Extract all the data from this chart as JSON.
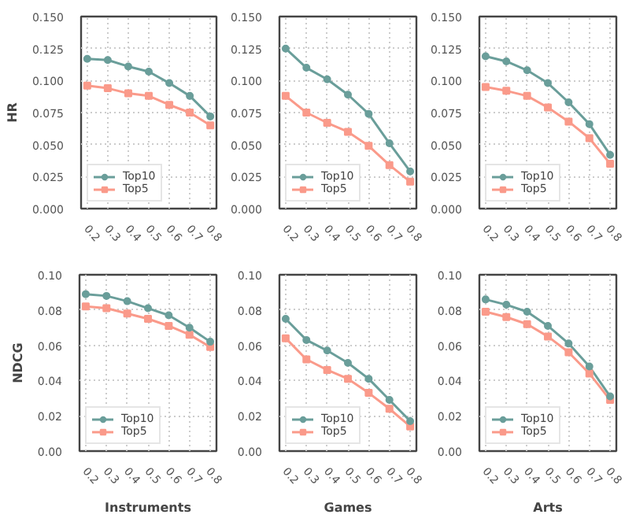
{
  "chart_data": [
    {
      "type": "line",
      "ylabel": "HR",
      "categories": [
        "0.2",
        "0.3",
        "0.4",
        "0.5",
        "0.6",
        "0.7",
        "0.8"
      ],
      "ylim": [
        0,
        0.15
      ],
      "yticks": [
        {
          "value": 0,
          "label": "0.000"
        },
        0.025,
        {
          "value": 0.05,
          "label": "0.050"
        },
        0.075,
        {
          "value": 0.1,
          "label": "0.100"
        },
        0.125,
        {
          "value": 0.15,
          "label": "0.150"
        }
      ],
      "grid": true,
      "legend": "bottom left",
      "series": [
        {
          "name": "Top10",
          "color": "#6a9e9a",
          "marker": "circle",
          "values": [
            0.117,
            0.116,
            0.111,
            0.107,
            0.098,
            0.088,
            0.072
          ]
        },
        {
          "name": "Top5",
          "color": "#fa9a8a",
          "marker": "square",
          "values": [
            0.096,
            0.094,
            0.09,
            0.088,
            0.081,
            0.075,
            0.065
          ]
        }
      ]
    },
    {
      "type": "line",
      "categories": [
        "0.2",
        "0.3",
        "0.4",
        "0.5",
        "0.6",
        "0.7",
        "0.8"
      ],
      "ylim": [
        0,
        0.15
      ],
      "yticks": [
        {
          "value": 0,
          "label": "0.000"
        },
        0.025,
        {
          "value": 0.05,
          "label": "0.050"
        },
        0.075,
        {
          "value": 0.1,
          "label": "0.100"
        },
        0.125,
        {
          "value": 0.15,
          "label": "0.150"
        }
      ],
      "grid": true,
      "legend": "bottom left",
      "series": [
        {
          "name": "Top10",
          "color": "#6a9e9a",
          "marker": "circle",
          "values": [
            0.125,
            0.11,
            0.101,
            0.089,
            0.074,
            0.051,
            0.029
          ]
        },
        {
          "name": "Top5",
          "color": "#fa9a8a",
          "marker": "square",
          "values": [
            0.088,
            0.075,
            0.067,
            0.06,
            0.049,
            0.034,
            0.021
          ]
        }
      ]
    },
    {
      "type": "line",
      "categories": [
        "0.2",
        "0.3",
        "0.4",
        "0.5",
        "0.6",
        "0.7",
        "0.8"
      ],
      "ylim": [
        0,
        0.15
      ],
      "yticks": [
        {
          "value": 0,
          "label": "0.000"
        },
        0.025,
        {
          "value": 0.05,
          "label": "0.050"
        },
        0.075,
        {
          "value": 0.1,
          "label": "0.100"
        },
        0.125,
        {
          "value": 0.15,
          "label": "0.150"
        }
      ],
      "grid": true,
      "legend": "bottom left",
      "series": [
        {
          "name": "Top10",
          "color": "#6a9e9a",
          "marker": "circle",
          "values": [
            0.119,
            0.115,
            0.108,
            0.098,
            0.083,
            0.066,
            0.042
          ]
        },
        {
          "name": "Top5",
          "color": "#fa9a8a",
          "marker": "square",
          "values": [
            0.095,
            0.092,
            0.088,
            0.079,
            0.068,
            0.055,
            0.035
          ]
        }
      ]
    },
    {
      "type": "line",
      "xlabel": "Instruments",
      "ylabel": "NDCG",
      "categories": [
        "0.2",
        "0.3",
        "0.4",
        "0.5",
        "0.6",
        "0.7",
        "0.8"
      ],
      "ylim": [
        0,
        0.1
      ],
      "yticks": [
        {
          "value": 0,
          "label": "0.00"
        },
        0.02,
        0.04,
        0.06,
        0.08,
        {
          "value": 0.1,
          "label": "0.10"
        }
      ],
      "grid": true,
      "legend": "bottom left",
      "series": [
        {
          "name": "Top10",
          "color": "#6a9e9a",
          "marker": "circle",
          "values": [
            0.089,
            0.088,
            0.085,
            0.081,
            0.077,
            0.07,
            0.062
          ]
        },
        {
          "name": "Top5",
          "color": "#fa9a8a",
          "marker": "square",
          "values": [
            0.082,
            0.081,
            0.078,
            0.075,
            0.071,
            0.066,
            0.059
          ]
        }
      ]
    },
    {
      "type": "line",
      "xlabel": "Games",
      "categories": [
        "0.2",
        "0.3",
        "0.4",
        "0.5",
        "0.6",
        "0.7",
        "0.8"
      ],
      "ylim": [
        0,
        0.1
      ],
      "yticks": [
        {
          "value": 0,
          "label": "0.00"
        },
        0.02,
        0.04,
        0.06,
        0.08,
        {
          "value": 0.1,
          "label": "0.10"
        }
      ],
      "grid": true,
      "legend": "bottom left",
      "series": [
        {
          "name": "Top10",
          "color": "#6a9e9a",
          "marker": "circle",
          "values": [
            0.075,
            0.063,
            0.057,
            0.05,
            0.041,
            0.029,
            0.017
          ]
        },
        {
          "name": "Top5",
          "color": "#fa9a8a",
          "marker": "square",
          "values": [
            0.064,
            0.052,
            0.046,
            0.041,
            0.033,
            0.024,
            0.014
          ]
        }
      ]
    },
    {
      "type": "line",
      "xlabel": "Arts",
      "categories": [
        "0.2",
        "0.3",
        "0.4",
        "0.5",
        "0.6",
        "0.7",
        "0.8"
      ],
      "ylim": [
        0,
        0.1
      ],
      "yticks": [
        {
          "value": 0,
          "label": "0.00"
        },
        0.02,
        0.04,
        0.06,
        0.08,
        {
          "value": 0.1,
          "label": "0.10"
        }
      ],
      "grid": true,
      "legend": "bottom left",
      "series": [
        {
          "name": "Top10",
          "color": "#6a9e9a",
          "marker": "circle",
          "values": [
            0.086,
            0.083,
            0.079,
            0.071,
            0.061,
            0.048,
            0.031
          ]
        },
        {
          "name": "Top5",
          "color": "#fa9a8a",
          "marker": "square",
          "values": [
            0.079,
            0.076,
            0.072,
            0.065,
            0.056,
            0.044,
            0.029
          ]
        }
      ]
    }
  ]
}
